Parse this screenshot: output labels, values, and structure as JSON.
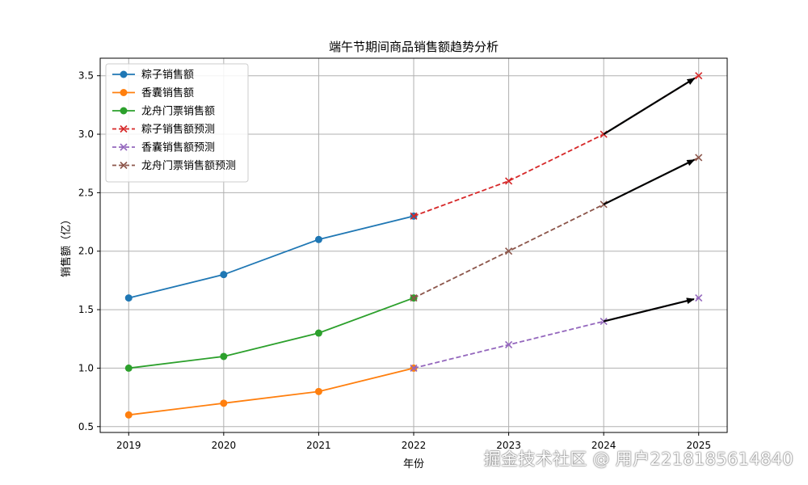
{
  "chart_data": {
    "type": "line",
    "title": "端午节期间商品销售额趋势分析",
    "xlabel": "年份",
    "ylabel": "销售额（亿）",
    "x": [
      2019,
      2020,
      2021,
      2022,
      2023,
      2024,
      2025
    ],
    "xlim": [
      2018.7,
      2025.3
    ],
    "ylim": [
      0.45,
      3.65
    ],
    "yticks": [
      0.5,
      1.0,
      1.5,
      2.0,
      2.5,
      3.0,
      3.5
    ],
    "grid": true,
    "legend_position": "upper-left",
    "series": [
      {
        "name": "粽子销售额",
        "x": [
          2019,
          2020,
          2021,
          2022
        ],
        "values": [
          1.6,
          1.8,
          2.1,
          2.3
        ],
        "color": "#1f77b4",
        "style": "solid",
        "marker": "circle"
      },
      {
        "name": "香囊销售额",
        "x": [
          2019,
          2020,
          2021,
          2022
        ],
        "values": [
          0.6,
          0.7,
          0.8,
          1.0
        ],
        "color": "#ff7f0e",
        "style": "solid",
        "marker": "circle"
      },
      {
        "name": "龙舟门票销售额",
        "x": [
          2019,
          2020,
          2021,
          2022
        ],
        "values": [
          1.0,
          1.1,
          1.3,
          1.6
        ],
        "color": "#2ca02c",
        "style": "solid",
        "marker": "circle"
      },
      {
        "name": "粽子销售额预测",
        "x": [
          2022,
          2023,
          2024,
          2025
        ],
        "values": [
          2.3,
          2.6,
          3.0,
          3.5
        ],
        "color": "#d62728",
        "style": "dashed",
        "marker": "x"
      },
      {
        "name": "香囊销售额预测",
        "x": [
          2022,
          2023,
          2024,
          2025
        ],
        "values": [
          1.0,
          1.2,
          1.4,
          1.6
        ],
        "color": "#9467bd",
        "style": "dashed",
        "marker": "x"
      },
      {
        "name": "龙舟门票销售额预测",
        "x": [
          2022,
          2023,
          2024,
          2025
        ],
        "values": [
          1.6,
          2.0,
          2.4,
          2.8
        ],
        "color": "#8c564b",
        "style": "dashed",
        "marker": "x"
      }
    ],
    "annotations": [
      {
        "type": "arrow",
        "from": [
          2024,
          3.0
        ],
        "to": [
          2025,
          3.5
        ],
        "color": "#000000"
      },
      {
        "type": "arrow",
        "from": [
          2024,
          2.4
        ],
        "to": [
          2025,
          2.8
        ],
        "color": "#000000"
      },
      {
        "type": "arrow",
        "from": [
          2024,
          1.4
        ],
        "to": [
          2025,
          1.6
        ],
        "color": "#000000"
      }
    ]
  },
  "watermark": "掘金技术社区 @ 用户2218185614840"
}
